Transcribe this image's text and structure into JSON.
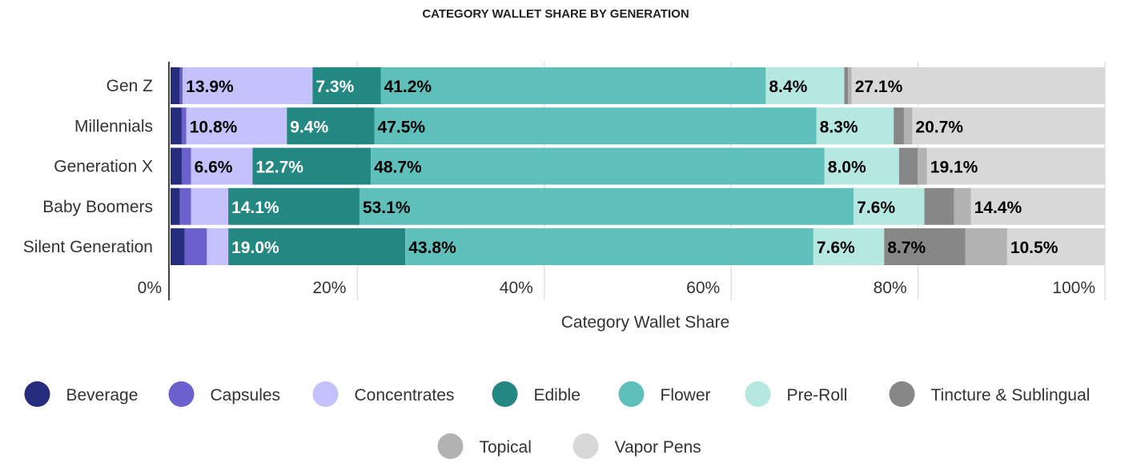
{
  "chart_data": {
    "type": "bar",
    "orientation": "horizontal",
    "stacked": true,
    "title": "CATEGORY WALLET SHARE BY GENERATION",
    "xlabel": "Category Wallet Share",
    "ylabel": "",
    "xlim": [
      0,
      100
    ],
    "x_ticks": [
      "0%",
      "20%",
      "40%",
      "60%",
      "80%",
      "100%"
    ],
    "grid": true,
    "legend_position": "bottom",
    "categories": [
      "Gen Z",
      "Millennials",
      "Generation X",
      "Baby Boomers",
      "Silent Generation"
    ],
    "series": [
      {
        "name": "Beverage",
        "color": "#262c7e",
        "label_color": "#ffffff",
        "values": [
          1.0,
          1.2,
          1.2,
          1.0,
          1.5
        ],
        "labels": [
          "",
          "",
          "",
          "",
          ""
        ]
      },
      {
        "name": "Capsules",
        "color": "#6a61cf",
        "label_color": "#ffffff",
        "values": [
          0.3,
          0.5,
          1.0,
          1.2,
          2.4
        ],
        "labels": [
          "",
          "",
          "",
          "",
          ""
        ]
      },
      {
        "name": "Concentrates",
        "color": "#c5c1fc",
        "label_color": "#000000",
        "values": [
          13.9,
          10.8,
          6.6,
          4.0,
          2.3
        ],
        "labels": [
          "13.9%",
          "10.8%",
          "6.6%",
          "",
          ""
        ]
      },
      {
        "name": "Edible",
        "color": "#248882",
        "label_color": "#ffffff",
        "values": [
          7.3,
          9.4,
          12.7,
          14.1,
          19.0
        ],
        "labels": [
          "7.3%",
          "9.4%",
          "12.7%",
          "14.1%",
          "19.0%"
        ]
      },
      {
        "name": "Flower",
        "color": "#5fc0bb",
        "label_color": "#000000",
        "values": [
          41.2,
          47.5,
          48.7,
          53.1,
          43.8
        ],
        "labels": [
          "41.2%",
          "47.5%",
          "48.7%",
          "53.1%",
          "43.8%"
        ]
      },
      {
        "name": "Pre-Roll",
        "color": "#b6e8e2",
        "label_color": "#000000",
        "values": [
          8.4,
          8.3,
          8.0,
          7.6,
          7.6
        ],
        "labels": [
          "8.4%",
          "8.3%",
          "8.0%",
          "7.6%",
          "7.6%"
        ]
      },
      {
        "name": "Tincture & Sublingual",
        "color": "#878787",
        "label_color": "#000000",
        "values": [
          0.4,
          1.1,
          2.0,
          3.2,
          8.7
        ],
        "labels": [
          "",
          "",
          "",
          "",
          "8.7%"
        ]
      },
      {
        "name": "Topical",
        "color": "#b2b2b2",
        "label_color": "#000000",
        "values": [
          0.4,
          0.9,
          1.0,
          1.8,
          4.5
        ],
        "labels": [
          "",
          "",
          "",
          "",
          ""
        ]
      },
      {
        "name": "Vapor Pens",
        "color": "#d8d8d8",
        "label_color": "#000000",
        "values": [
          27.1,
          20.7,
          19.1,
          14.4,
          10.5
        ],
        "labels": [
          "27.1%",
          "20.7%",
          "19.1%",
          "14.4%",
          "10.5%"
        ]
      }
    ]
  }
}
